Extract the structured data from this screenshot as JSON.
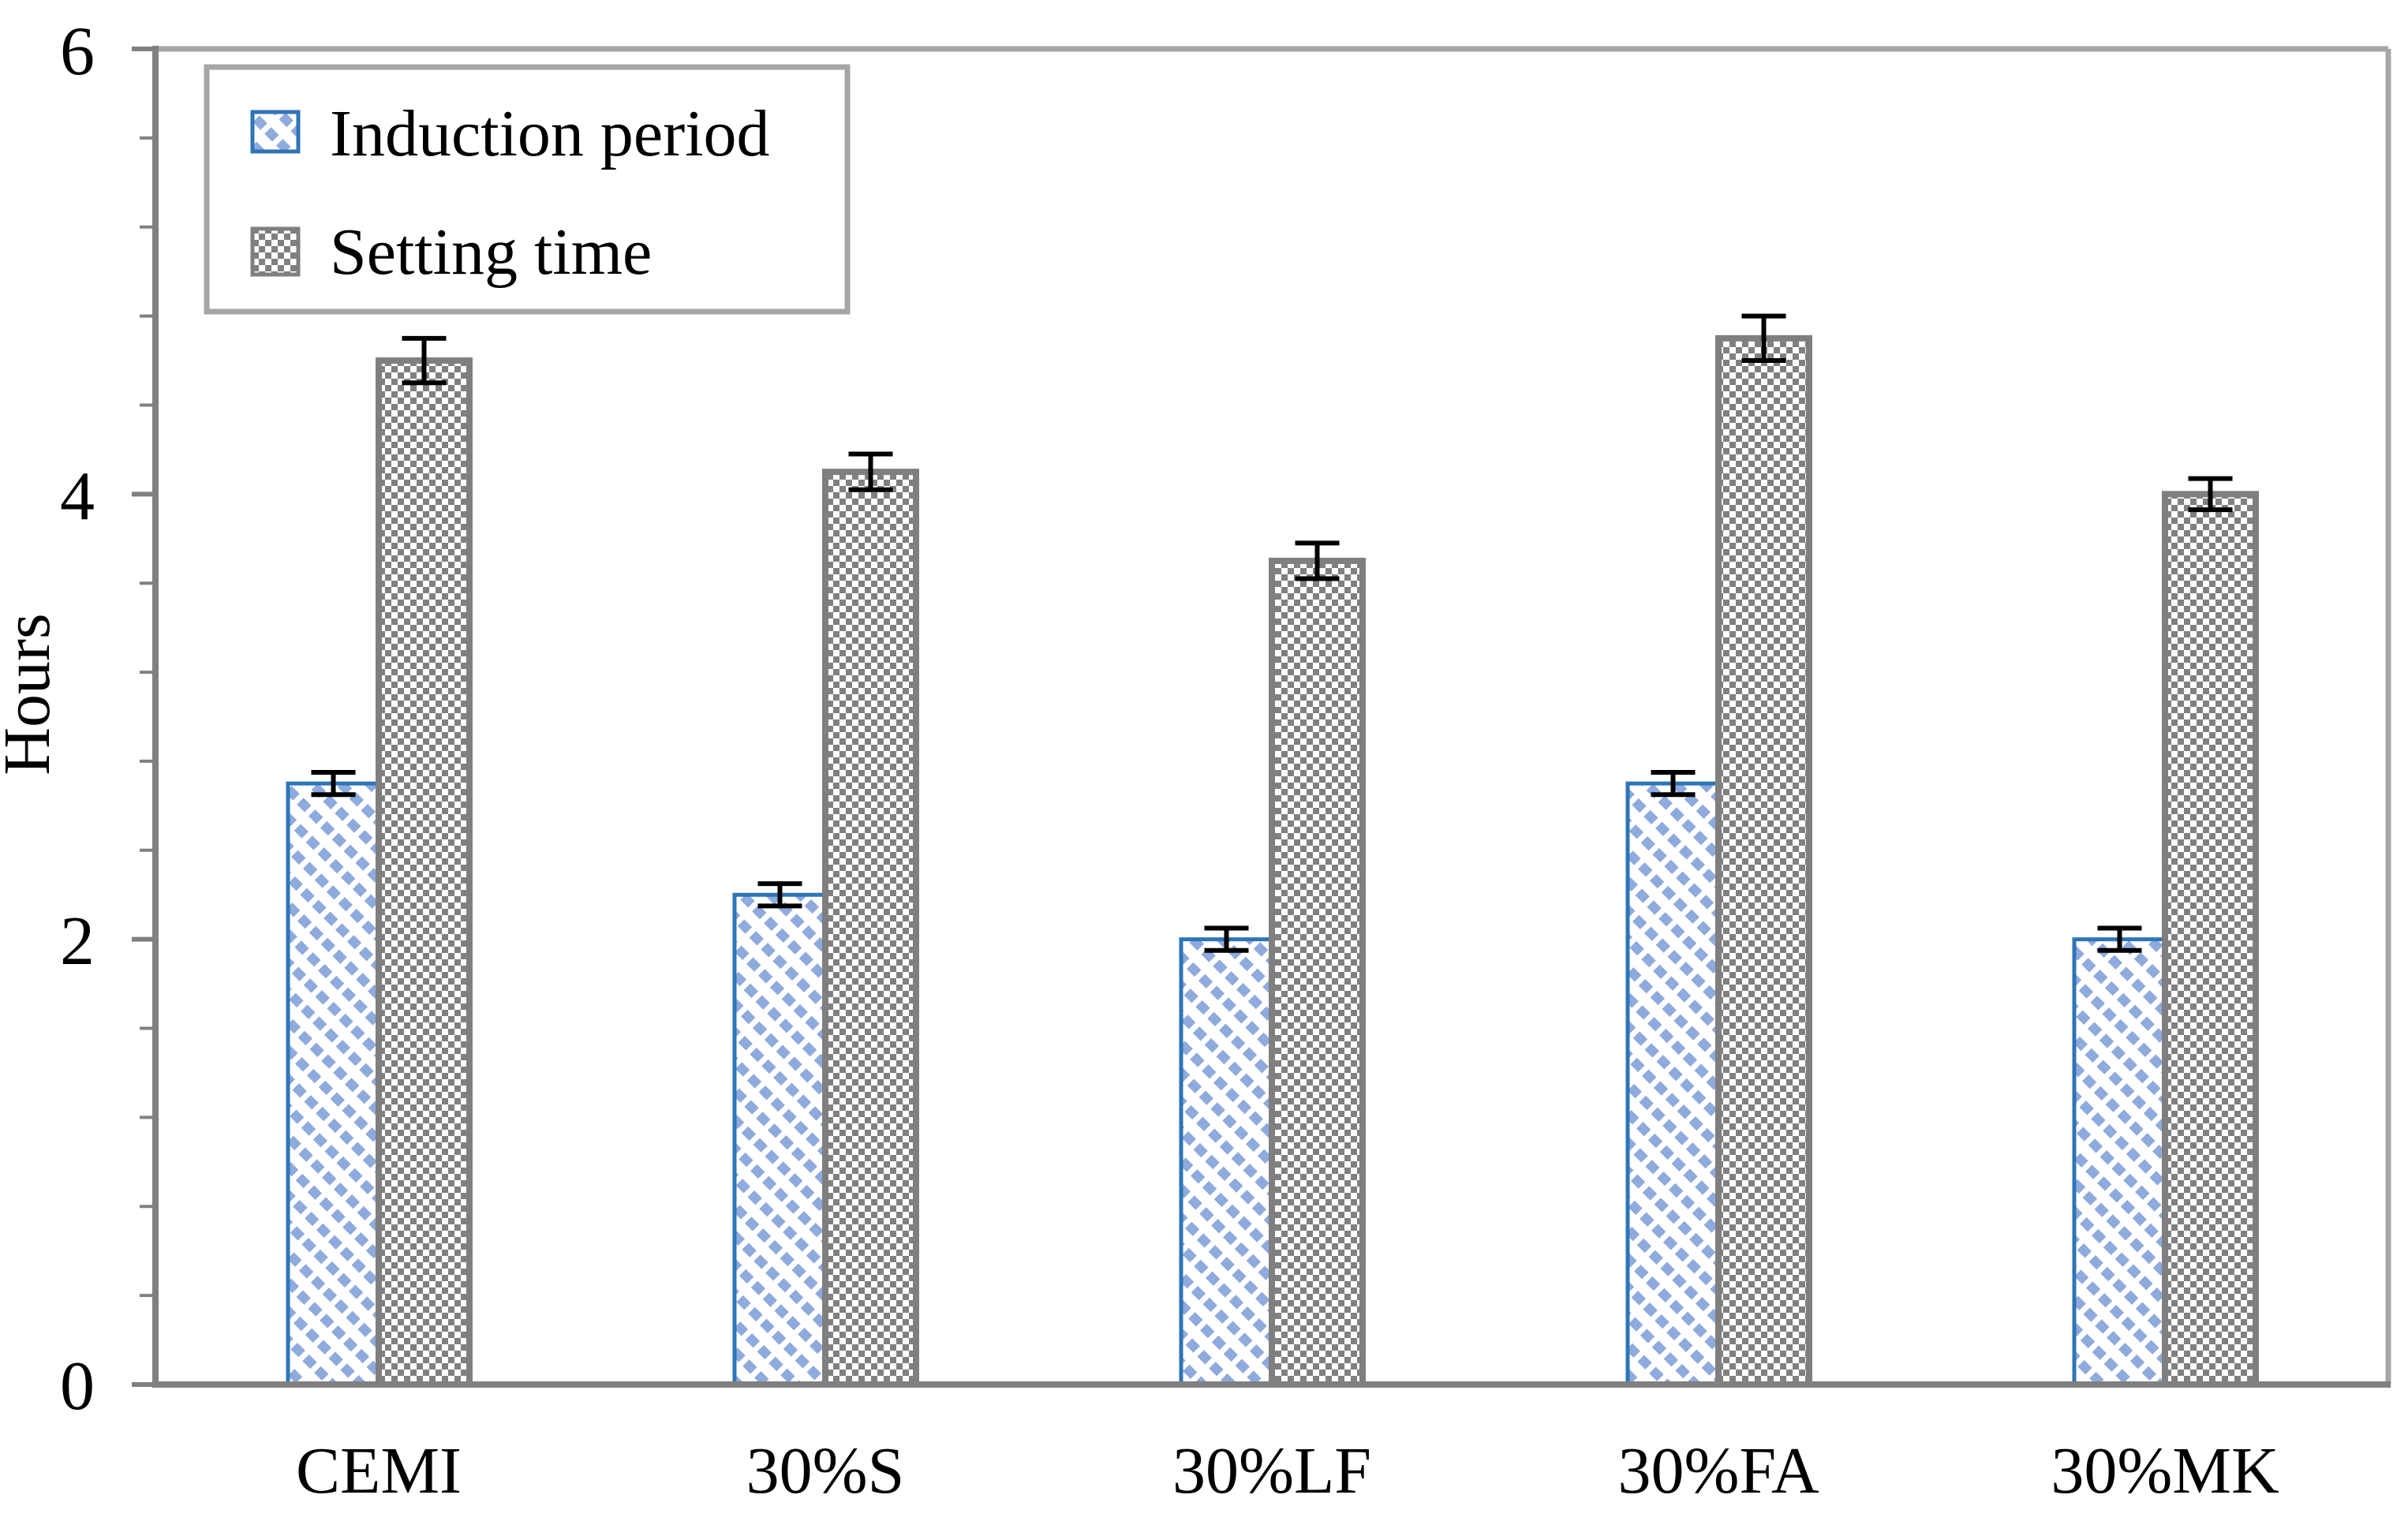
{
  "chart_data": {
    "type": "bar",
    "title": "",
    "categories": [
      "CEMI",
      "30%S",
      "30%LF",
      "30%FA",
      "30%MK"
    ],
    "series": [
      {
        "name": "Induction period",
        "values": [
          2.7,
          2.2,
          2.0,
          2.7,
          2.0
        ],
        "errors": [
          0.05,
          0.05,
          0.05,
          0.05,
          0.05
        ],
        "fill_pattern": "diagonal-hatch",
        "border_color": "#2E75B6",
        "pattern_color": "#8FAADC"
      },
      {
        "name": "Setting time",
        "values": [
          4.6,
          4.1,
          3.7,
          4.7,
          4.0
        ],
        "errors": [
          0.1,
          0.08,
          0.08,
          0.1,
          0.07
        ],
        "fill_pattern": "checkerboard-dots",
        "border_color": "#7F7F7F",
        "pattern_color": "#808080"
      }
    ],
    "xlabel": "",
    "ylabel": "Hours",
    "ylim": [
      0,
      6
    ],
    "yticks": [
      0,
      2,
      4,
      6
    ],
    "y_minor_step": 0.4,
    "grid": false,
    "legend_position": "top-left-inside",
    "error_bar_color": "#000000",
    "axis_color": "#808080",
    "frame_color": "#A6A6A6",
    "plot_background": "#FFFFFF"
  }
}
